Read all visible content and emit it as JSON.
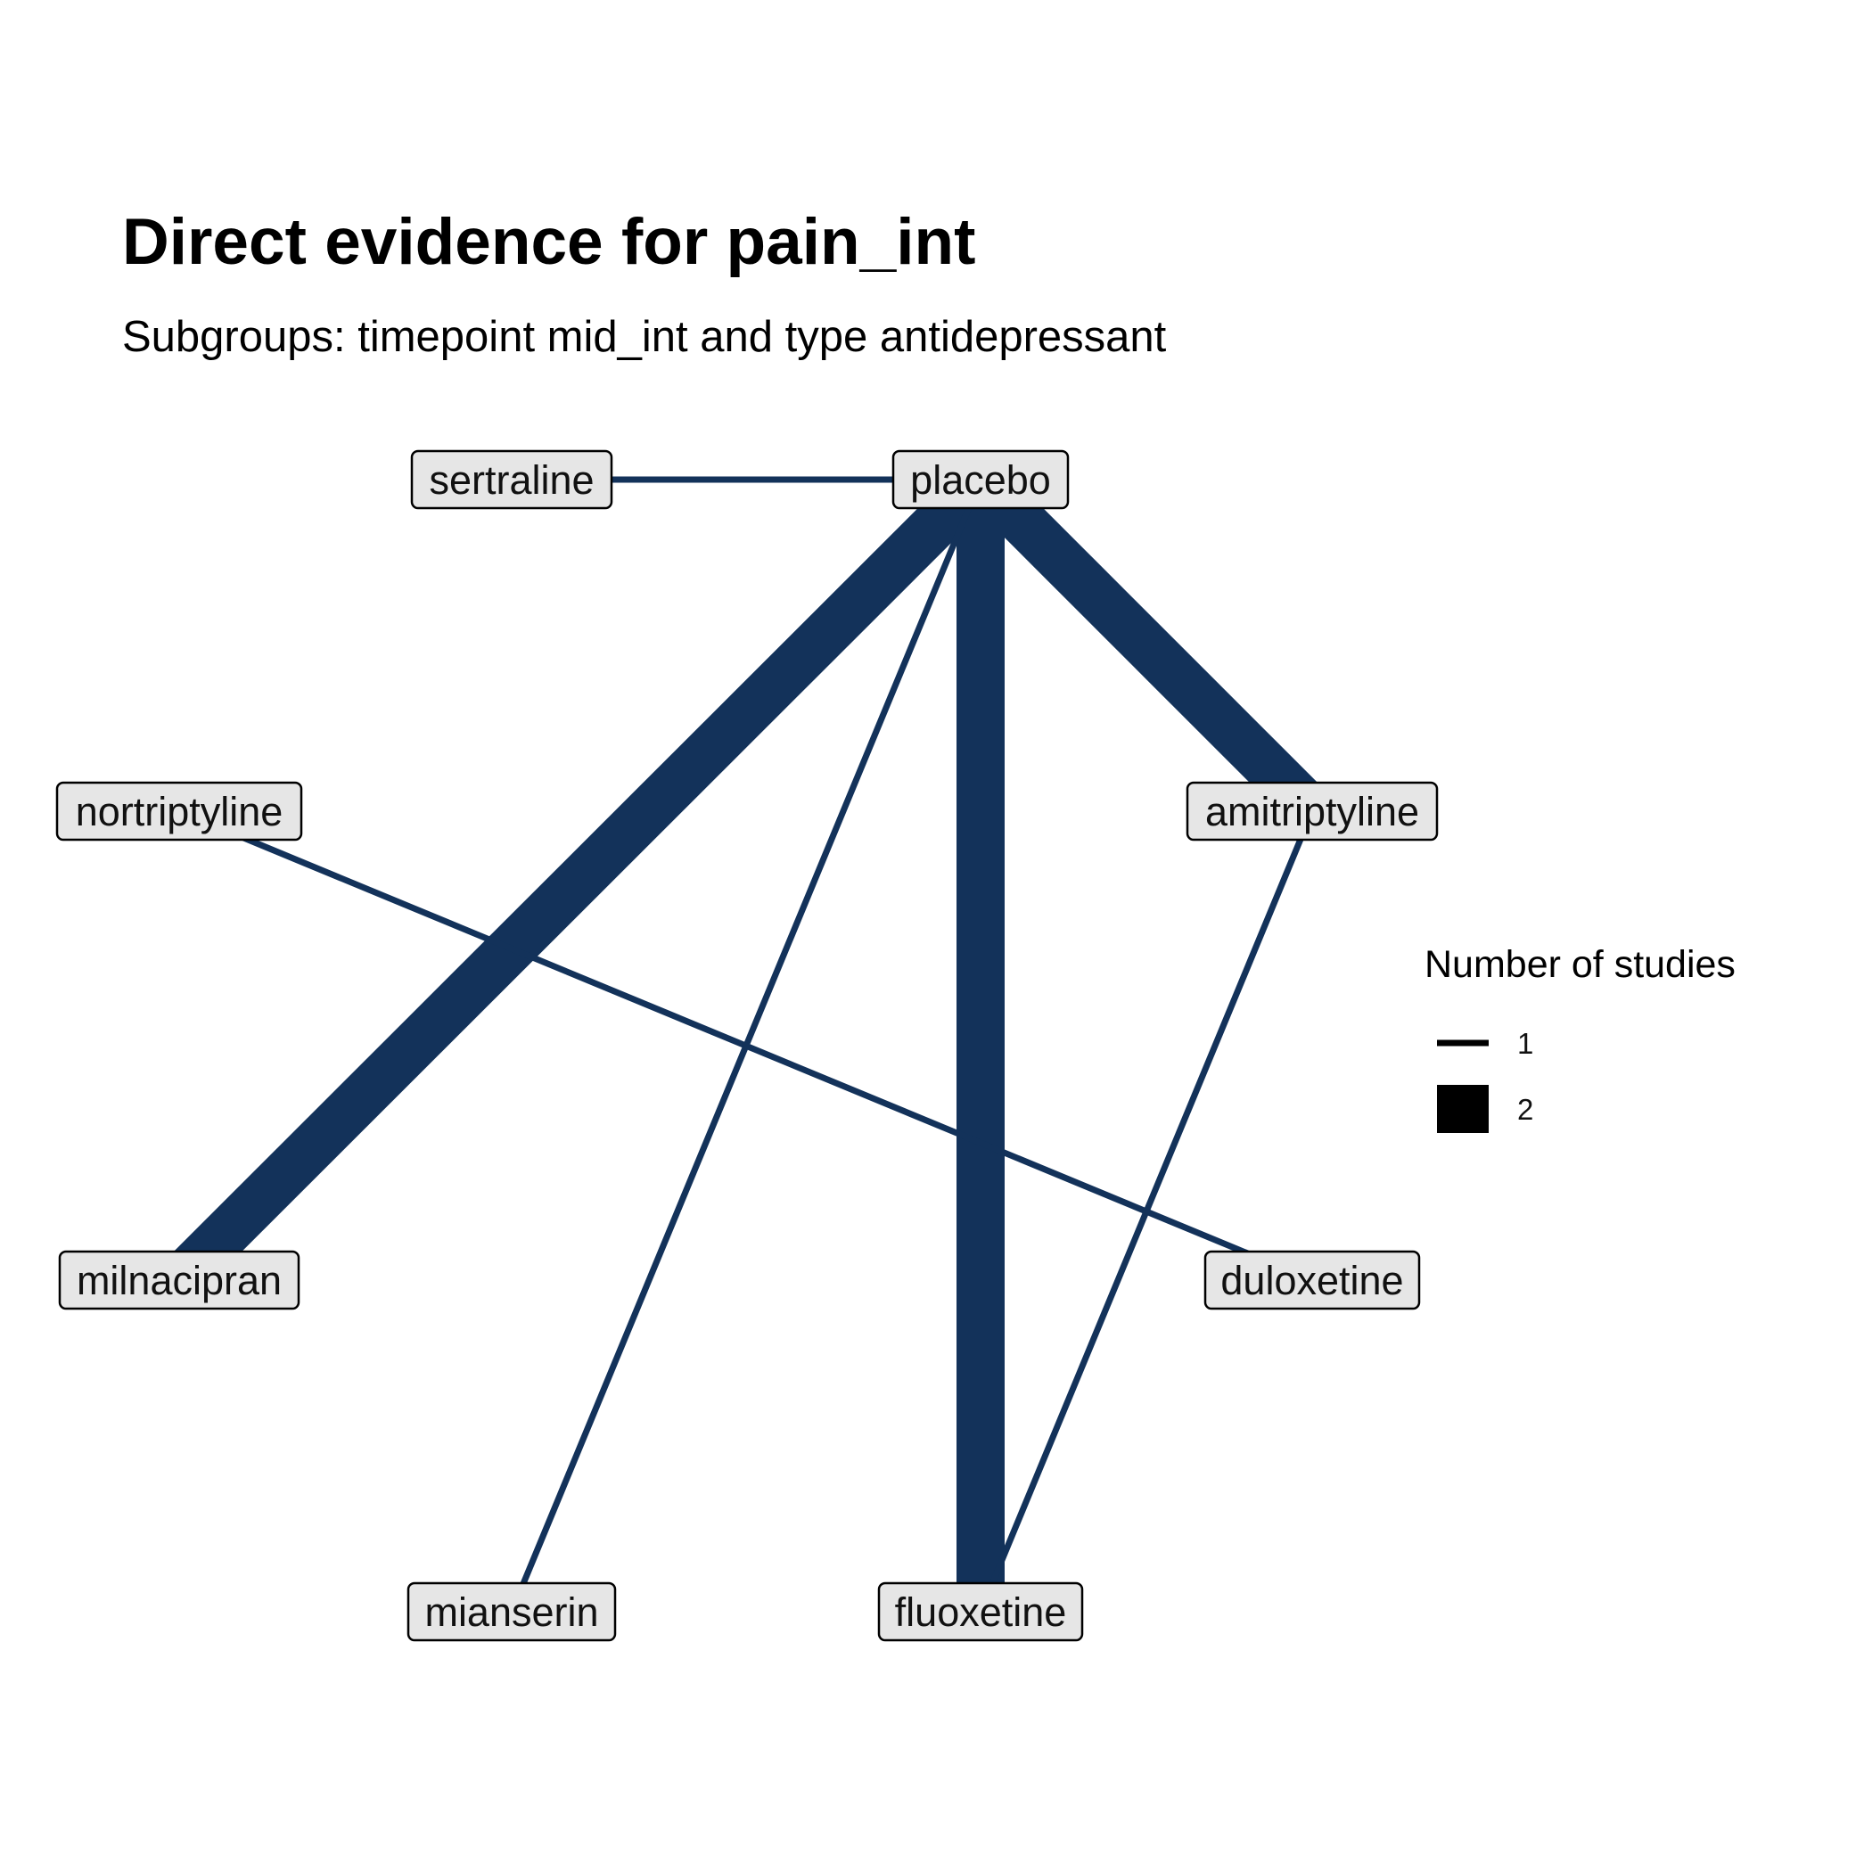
{
  "title": "Direct evidence for pain_int",
  "subtitle": "Subgroups: timepoint mid_int and type antidepressant",
  "edge_color": "#13325a",
  "node_fill": "#e6e6e6",
  "nodes": [
    {
      "id": "placebo",
      "label": "placebo"
    },
    {
      "id": "sertraline",
      "label": "sertraline"
    },
    {
      "id": "nortriptyline",
      "label": "nortriptyline"
    },
    {
      "id": "amitriptyline",
      "label": "amitriptyline"
    },
    {
      "id": "milnacipran",
      "label": "milnacipran"
    },
    {
      "id": "duloxetine",
      "label": "duloxetine"
    },
    {
      "id": "mianserin",
      "label": "mianserin"
    },
    {
      "id": "fluoxetine",
      "label": "fluoxetine"
    }
  ],
  "edges": [
    {
      "from": "sertraline",
      "to": "placebo",
      "studies": 1
    },
    {
      "from": "placebo",
      "to": "milnacipran",
      "studies": 2
    },
    {
      "from": "placebo",
      "to": "amitriptyline",
      "studies": 2
    },
    {
      "from": "placebo",
      "to": "fluoxetine",
      "studies": 2
    },
    {
      "from": "placebo",
      "to": "mianserin",
      "studies": 1
    },
    {
      "from": "nortriptyline",
      "to": "duloxetine",
      "studies": 1
    },
    {
      "from": "amitriptyline",
      "to": "fluoxetine",
      "studies": 1
    }
  ],
  "legend": {
    "title": "Number of studies",
    "items": [
      {
        "studies": 1,
        "label": "1"
      },
      {
        "studies": 2,
        "label": "2"
      }
    ]
  }
}
